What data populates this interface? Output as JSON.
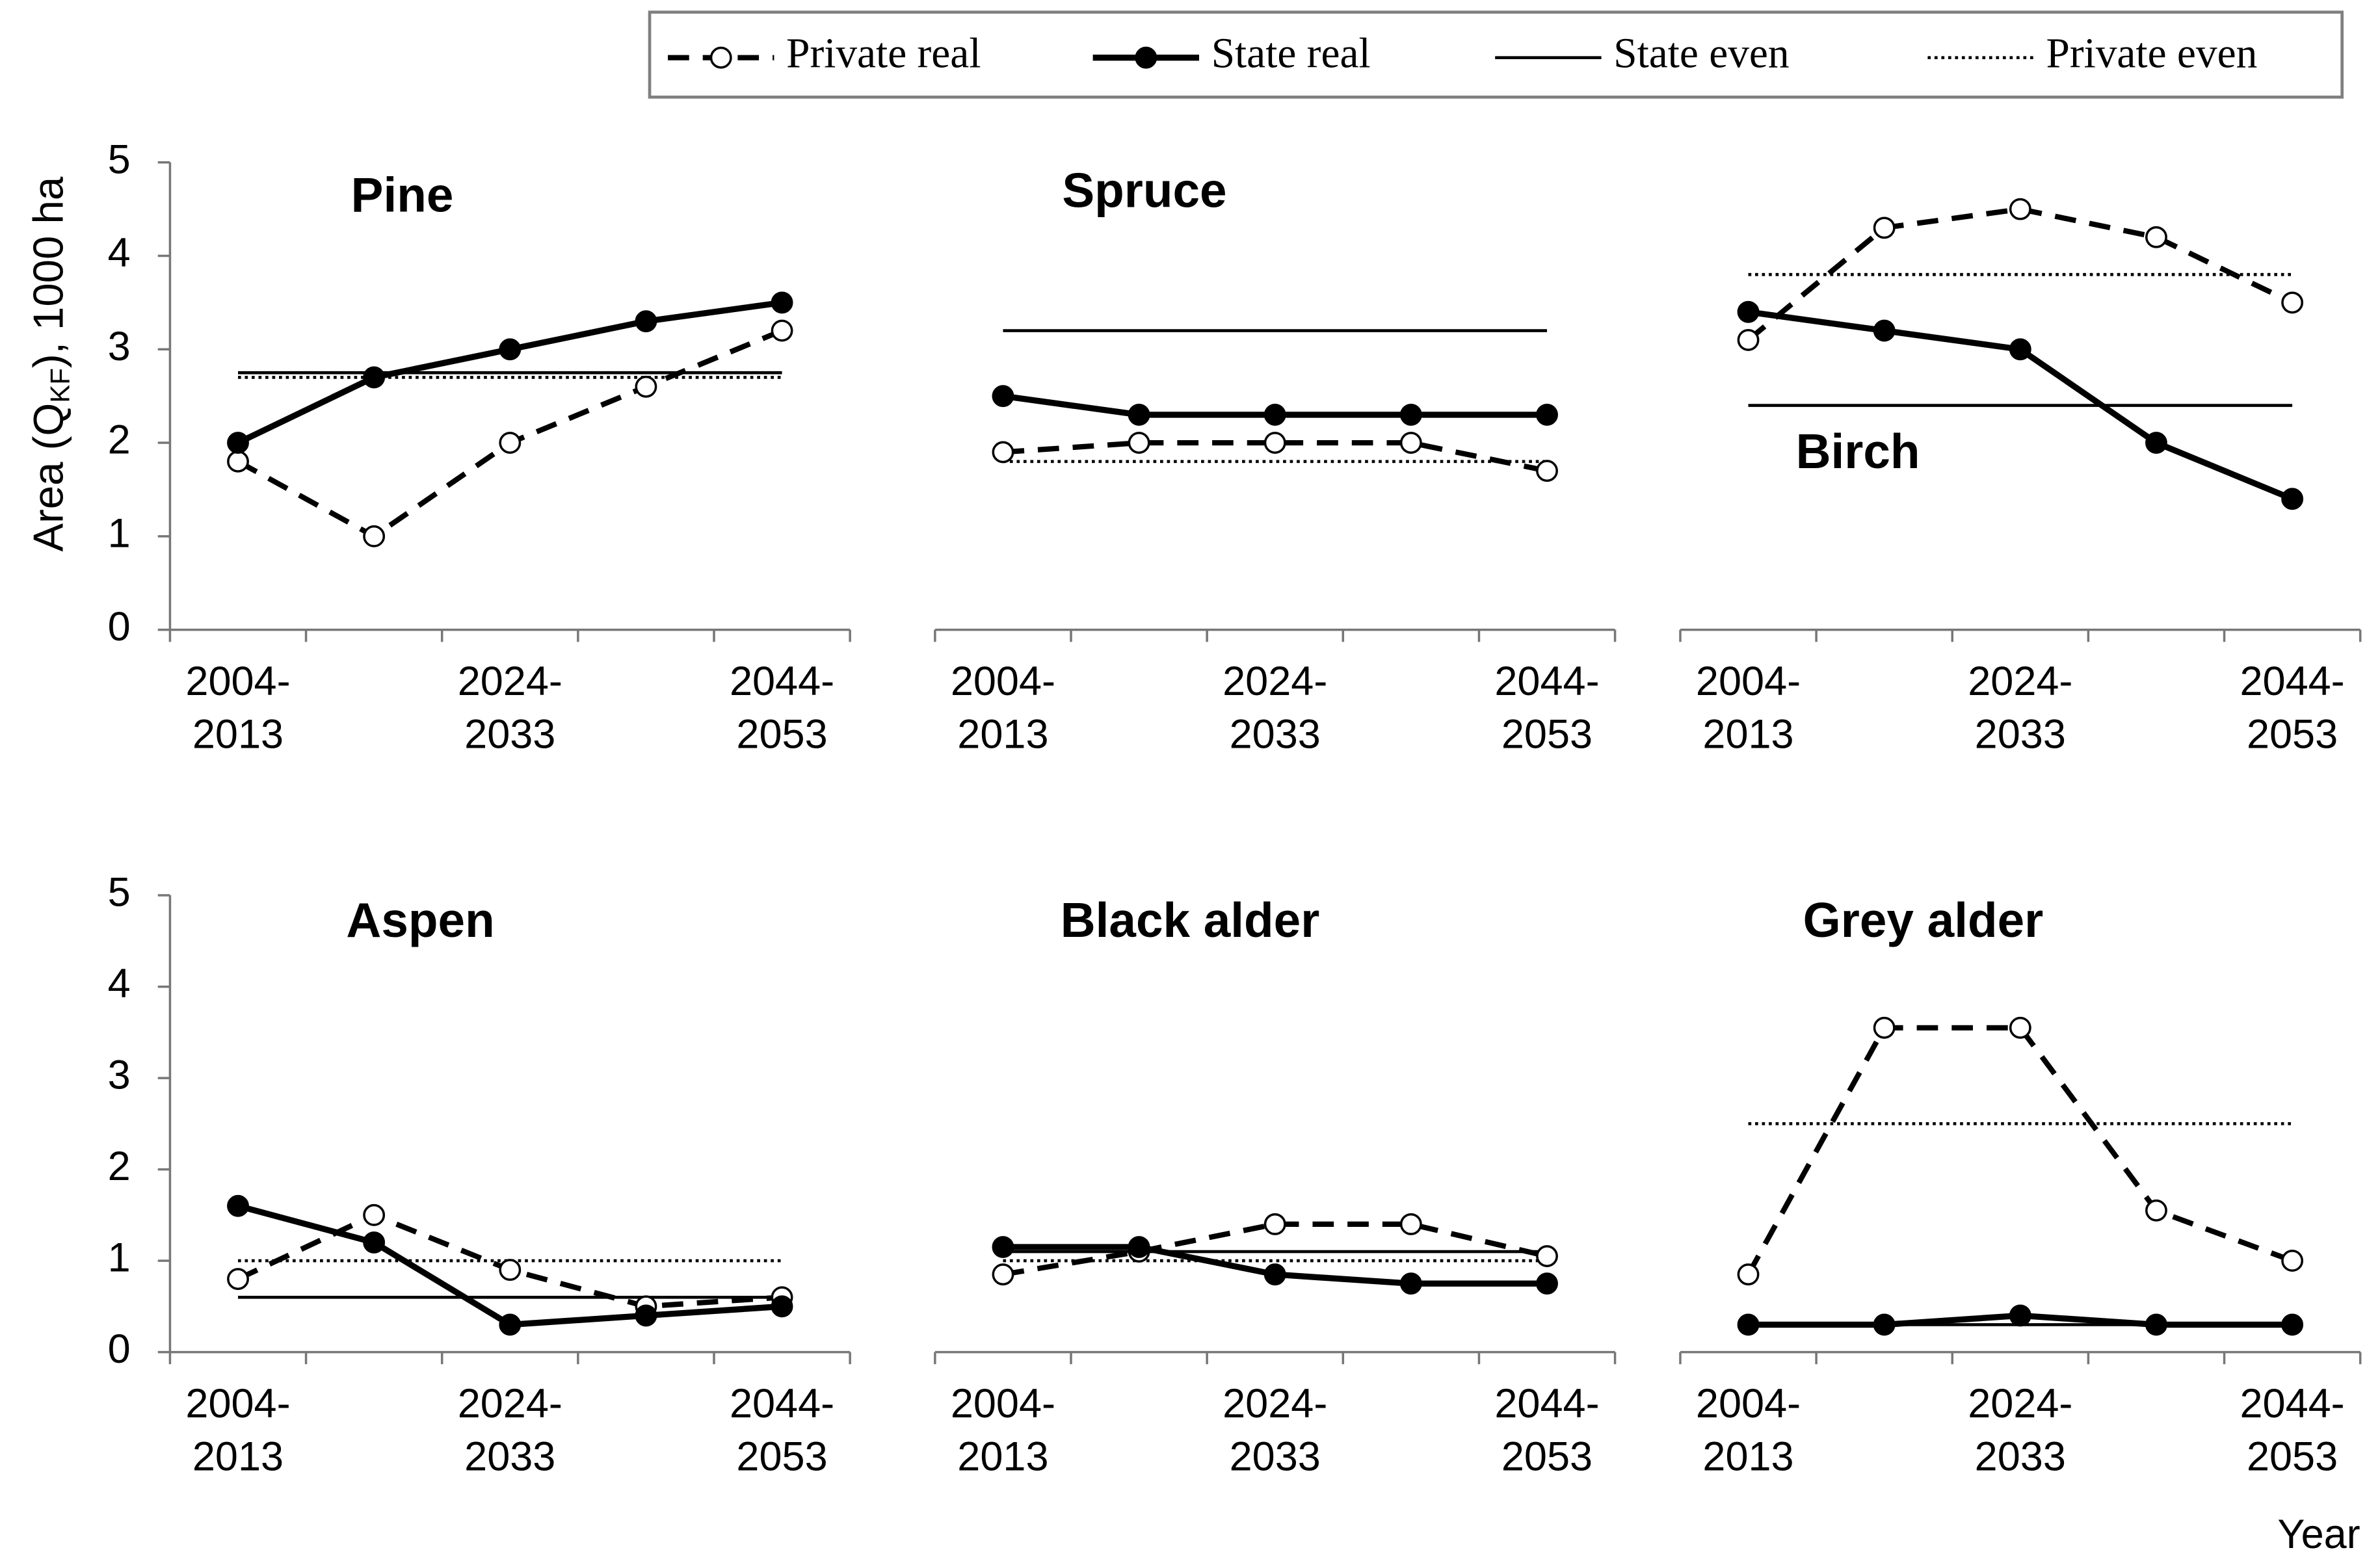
{
  "chart_data": [
    {
      "type": "line",
      "title": "Pine",
      "ylabel_parts": [
        "Area (Q",
        "KF",
        "), 1000 ha"
      ],
      "categories": [
        "2004-\n2013",
        null,
        "2024-\n2033",
        null,
        "2044-\n2053"
      ],
      "ylim": [
        0,
        5
      ],
      "yticks": [
        0,
        1,
        2,
        3,
        4,
        5
      ],
      "series": [
        {
          "name": "Private real",
          "color": "#000000",
          "line_style": "dashed",
          "marker": "open",
          "values": [
            1.8,
            1.0,
            2.0,
            2.6,
            3.2
          ]
        },
        {
          "name": "State real",
          "color": "#000000",
          "line_style": "bold",
          "marker": "filled",
          "values": [
            2.0,
            2.7,
            3.0,
            3.3,
            3.5
          ]
        },
        {
          "name": "State even",
          "color": "#000000",
          "line_style": "thin",
          "marker": "none",
          "values": [
            2.75,
            2.75,
            2.75,
            2.75,
            2.75
          ]
        },
        {
          "name": "Private even",
          "color": "#000000",
          "line_style": "dotted",
          "marker": "none",
          "values": [
            2.7,
            2.7,
            2.7,
            2.7,
            2.7
          ]
        }
      ]
    },
    {
      "type": "line",
      "title": "Spruce",
      "categories": [
        "2004-\n2013",
        null,
        "2024-\n2033",
        null,
        "2044-\n2053"
      ],
      "ylim": [
        0,
        5
      ],
      "series": [
        {
          "name": "Private real",
          "color": "#000000",
          "line_style": "dashed",
          "marker": "open",
          "values": [
            1.9,
            2.0,
            2.0,
            2.0,
            1.7
          ]
        },
        {
          "name": "State real",
          "color": "#000000",
          "line_style": "bold",
          "marker": "filled",
          "values": [
            2.5,
            2.3,
            2.3,
            2.3,
            2.3
          ]
        },
        {
          "name": "State even",
          "color": "#000000",
          "line_style": "thin",
          "marker": "none",
          "values": [
            3.2,
            3.2,
            3.2,
            3.2,
            3.2
          ]
        },
        {
          "name": "Private even",
          "color": "#000000",
          "line_style": "dotted",
          "marker": "none",
          "values": [
            1.8,
            1.8,
            1.8,
            1.8,
            1.8
          ]
        }
      ]
    },
    {
      "type": "line",
      "title": "Birch",
      "categories": [
        "2004-\n2013",
        null,
        "2024-\n2033",
        null,
        "2044-\n2053"
      ],
      "ylim": [
        0,
        5
      ],
      "series": [
        {
          "name": "Private real",
          "color": "#000000",
          "line_style": "dashed",
          "marker": "open",
          "values": [
            3.1,
            4.3,
            4.5,
            4.2,
            3.5
          ]
        },
        {
          "name": "State real",
          "color": "#000000",
          "line_style": "bold",
          "marker": "filled",
          "values": [
            3.4,
            3.2,
            3.0,
            2.0,
            1.4
          ]
        },
        {
          "name": "State even",
          "color": "#000000",
          "line_style": "thin",
          "marker": "none",
          "values": [
            2.4,
            2.4,
            2.4,
            2.4,
            2.4
          ]
        },
        {
          "name": "Private even",
          "color": "#000000",
          "line_style": "dotted",
          "marker": "none",
          "values": [
            3.8,
            3.8,
            3.8,
            3.8,
            3.8
          ]
        }
      ]
    },
    {
      "type": "line",
      "title": "Aspen",
      "categories": [
        "2004-\n2013",
        null,
        "2024-\n2033",
        null,
        "2044-\n2053"
      ],
      "ylim": [
        0,
        5
      ],
      "yticks": [
        0,
        1,
        2,
        3,
        4,
        5
      ],
      "series": [
        {
          "name": "Private real",
          "color": "#000000",
          "line_style": "dashed",
          "marker": "open",
          "values": [
            0.8,
            1.5,
            0.9,
            0.5,
            0.6
          ]
        },
        {
          "name": "State real",
          "color": "#000000",
          "line_style": "bold",
          "marker": "filled",
          "values": [
            1.6,
            1.2,
            0.3,
            0.4,
            0.5
          ]
        },
        {
          "name": "State even",
          "color": "#000000",
          "line_style": "thin",
          "marker": "none",
          "values": [
            0.6,
            0.6,
            0.6,
            0.6,
            0.6
          ]
        },
        {
          "name": "Private even",
          "color": "#000000",
          "line_style": "dotted",
          "marker": "none",
          "values": [
            1.0,
            1.0,
            1.0,
            1.0,
            1.0
          ]
        }
      ]
    },
    {
      "type": "line",
      "title": "Black alder",
      "categories": [
        "2004-\n2013",
        null,
        "2024-\n2033",
        null,
        "2044-\n2053"
      ],
      "ylim": [
        0,
        5
      ],
      "series": [
        {
          "name": "Private real",
          "color": "#000000",
          "line_style": "dashed",
          "marker": "open",
          "values": [
            0.85,
            1.1,
            1.4,
            1.4,
            1.05
          ]
        },
        {
          "name": "State real",
          "color": "#000000",
          "line_style": "bold",
          "marker": "filled",
          "values": [
            1.15,
            1.15,
            0.85,
            0.75,
            0.75
          ]
        },
        {
          "name": "State even",
          "color": "#000000",
          "line_style": "thin",
          "marker": "none",
          "values": [
            1.1,
            1.1,
            1.1,
            1.1,
            1.1
          ]
        },
        {
          "name": "Private even",
          "color": "#000000",
          "line_style": "dotted",
          "marker": "none",
          "values": [
            1.0,
            1.0,
            1.0,
            1.0,
            1.0
          ]
        }
      ]
    },
    {
      "type": "line",
      "title": "Grey alder",
      "xlabel": "Year",
      "categories": [
        "2004-\n2013",
        null,
        "2024-\n2033",
        null,
        "2044-\n2053"
      ],
      "ylim": [
        0,
        5
      ],
      "series": [
        {
          "name": "Private real",
          "color": "#000000",
          "line_style": "dashed",
          "marker": "open",
          "values": [
            0.85,
            3.55,
            3.55,
            1.55,
            1.0
          ]
        },
        {
          "name": "State real",
          "color": "#000000",
          "line_style": "bold",
          "marker": "filled",
          "values": [
            0.3,
            0.3,
            0.4,
            0.3,
            0.3
          ]
        },
        {
          "name": "State even",
          "color": "#000000",
          "line_style": "thin",
          "marker": "none",
          "values": [
            0.3,
            0.3,
            0.3,
            0.3,
            0.3
          ]
        },
        {
          "name": "Private even",
          "color": "#000000",
          "line_style": "dotted",
          "marker": "none",
          "values": [
            2.5,
            2.5,
            2.5,
            2.5,
            2.5
          ]
        }
      ]
    }
  ]
}
